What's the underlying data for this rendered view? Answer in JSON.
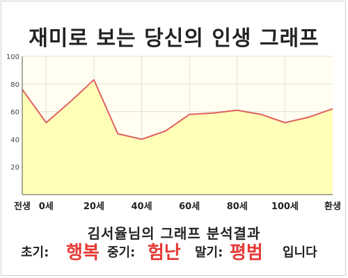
{
  "title": "재미로 보는 당신의 인생 그래프",
  "chart_data": {
    "type": "area",
    "x": [
      0,
      1,
      2,
      3,
      4,
      5,
      6,
      7,
      8,
      9,
      10,
      11,
      12,
      13
    ],
    "y": [
      76,
      52,
      67,
      83,
      44,
      40,
      46,
      58,
      59,
      61,
      58,
      52,
      56,
      62
    ],
    "tick_labels": [
      {
        "x": 0,
        "label": "전생"
      },
      {
        "x": 1,
        "label": "0세"
      },
      {
        "x": 3,
        "label": "20세"
      },
      {
        "x": 5,
        "label": "40세"
      },
      {
        "x": 7,
        "label": "60세"
      },
      {
        "x": 9,
        "label": "80세"
      },
      {
        "x": 11,
        "label": "100세"
      },
      {
        "x": 13,
        "label": "환생"
      }
    ],
    "xlim": [
      0,
      13
    ],
    "ylim": [
      0,
      100
    ],
    "yticks": [
      20,
      40,
      60,
      80,
      100
    ],
    "grid": true,
    "colors": {
      "line": "#e06060",
      "fill": "#ffffb8",
      "plot_bg": "#fffef0",
      "grid": "#e0e0e0"
    }
  },
  "result": {
    "heading": "김서율님의 그래프 분석결과",
    "early_label": "초기:",
    "early_value": "행복",
    "middle_label": "중기:",
    "middle_value": "험난",
    "late_label": "말기:",
    "late_value": "평범",
    "ending": "입니다"
  }
}
